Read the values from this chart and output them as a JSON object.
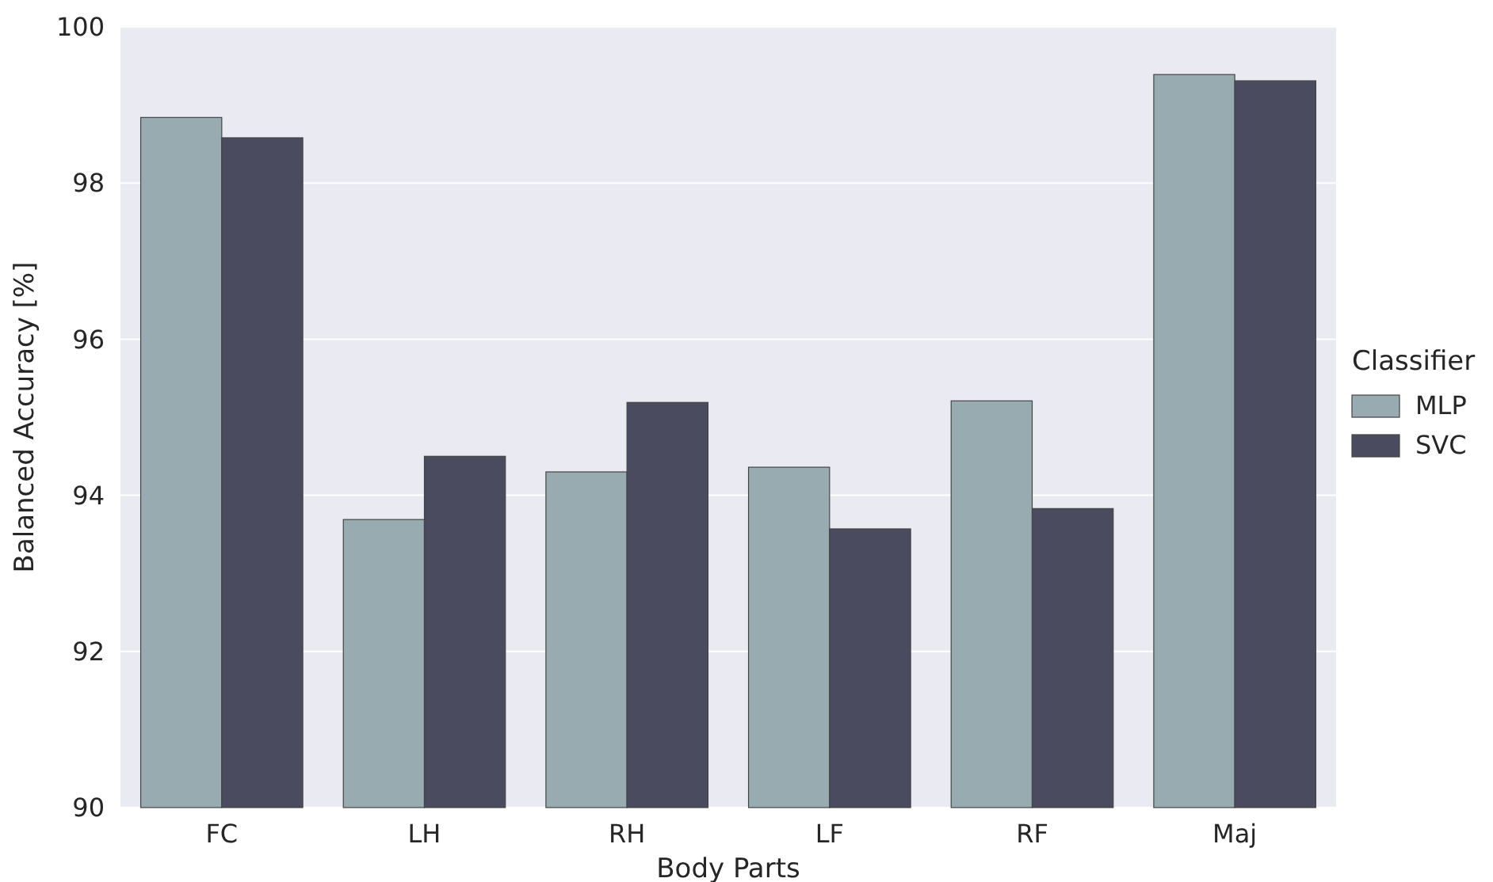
{
  "chart_data": {
    "type": "bar",
    "xlabel": "Body Parts",
    "ylabel": "Balanced Accuracy [%]",
    "legend_title": "Classifier",
    "categories": [
      "FC",
      "LH",
      "RH",
      "LF",
      "RF",
      "Maj"
    ],
    "series": [
      {
        "name": "MLP",
        "color": "#98abb1",
        "values": [
          98.84,
          93.69,
          94.3,
          94.36,
          95.21,
          99.39
        ]
      },
      {
        "name": "SVC",
        "color": "#4b4b5f",
        "values": [
          98.58,
          94.5,
          95.19,
          93.57,
          93.83,
          99.31
        ]
      }
    ],
    "ylim": [
      90,
      100
    ],
    "yticks": [
      90,
      92,
      94,
      96,
      98,
      100
    ],
    "grid": "y",
    "legend": "right"
  }
}
